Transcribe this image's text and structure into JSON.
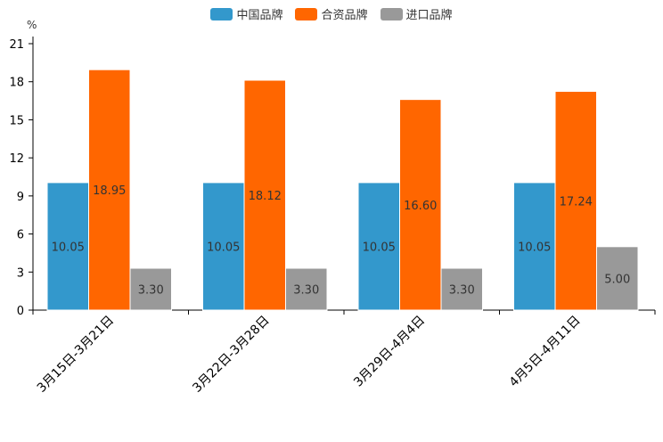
{
  "chart_data": {
    "type": "bar",
    "unit_label": "%",
    "categories": [
      "3月15日-3月21日",
      "3月22日-3月28日",
      "3月29日-4月4日",
      "4月5日-4月11日"
    ],
    "series": [
      {
        "name": "中国品牌",
        "color": "#3398cc",
        "values": [
          10.05,
          10.05,
          10.05,
          10.05
        ],
        "labels": [
          "10.05",
          "10.05",
          "10.05",
          "10.05"
        ]
      },
      {
        "name": "合资品牌",
        "color": "#ff6600",
        "values": [
          18.95,
          18.12,
          16.6,
          17.24
        ],
        "labels": [
          "18.95",
          "18.12",
          "16.60",
          "17.24"
        ]
      },
      {
        "name": "进口品牌",
        "color": "#999999",
        "values": [
          3.3,
          3.3,
          3.3,
          5.0
        ],
        "labels": [
          "3.30",
          "3.30",
          "3.30",
          "5.00"
        ]
      }
    ],
    "ylim": [
      0,
      21
    ],
    "yticks": [
      "0",
      "3",
      "6",
      "9",
      "12",
      "15",
      "18",
      "21"
    ],
    "legend_position": "top-center"
  }
}
